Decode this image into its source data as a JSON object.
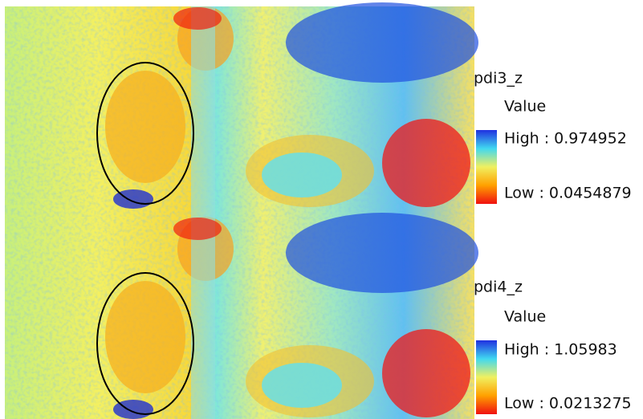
{
  "panels": [
    {
      "legend": {
        "title": "pdi3_z",
        "subtitle": "Value",
        "high": "High : 0.974952",
        "low": "Low : 0.0454879"
      }
    },
    {
      "legend": {
        "title": "pdi4_z",
        "subtitle": "Value",
        "high": "High : 1.05983",
        "low": "Low : 0.0213275"
      }
    }
  ]
}
